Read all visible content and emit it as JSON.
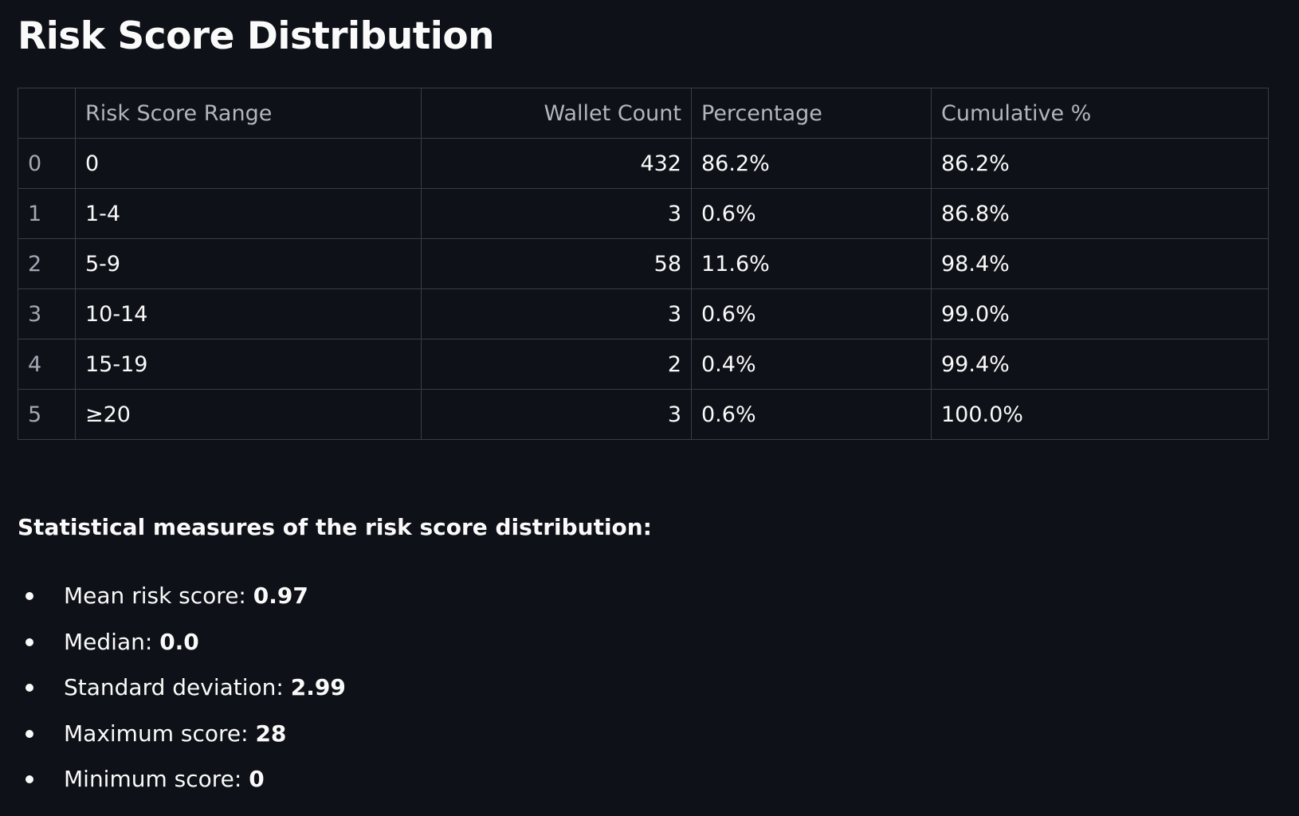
{
  "page": {
    "title": "Risk Score Distribution"
  },
  "table": {
    "headers": [
      "",
      "Risk Score Range",
      "Wallet Count",
      "Percentage",
      "Cumulative %"
    ],
    "rows": [
      {
        "index": "0",
        "range": "0",
        "count": "432",
        "percentage": "86.2%",
        "cumulative": "86.2%"
      },
      {
        "index": "1",
        "range": "1-4",
        "count": "3",
        "percentage": "0.6%",
        "cumulative": "86.8%"
      },
      {
        "index": "2",
        "range": "5-9",
        "count": "58",
        "percentage": "11.6%",
        "cumulative": "98.4%"
      },
      {
        "index": "3",
        "range": "10-14",
        "count": "3",
        "percentage": "0.6%",
        "cumulative": "99.0%"
      },
      {
        "index": "4",
        "range": "15-19",
        "count": "2",
        "percentage": "0.4%",
        "cumulative": "99.4%"
      },
      {
        "index": "5",
        "range": "≥20",
        "count": "3",
        "percentage": "0.6%",
        "cumulative": "100.0%"
      }
    ]
  },
  "stats": {
    "heading": "Statistical measures of the risk score distribution:",
    "items": [
      {
        "label": "Mean risk score: ",
        "value": "0.97"
      },
      {
        "label": "Median: ",
        "value": "0.0"
      },
      {
        "label": "Standard deviation: ",
        "value": "2.99"
      },
      {
        "label": "Maximum score: ",
        "value": "28"
      },
      {
        "label": "Minimum score: ",
        "value": "0"
      }
    ]
  },
  "colors": {
    "background": "#0e1117",
    "text": "#fafafa",
    "header_text": "#b3b6bd",
    "border": "#3a3d46"
  }
}
